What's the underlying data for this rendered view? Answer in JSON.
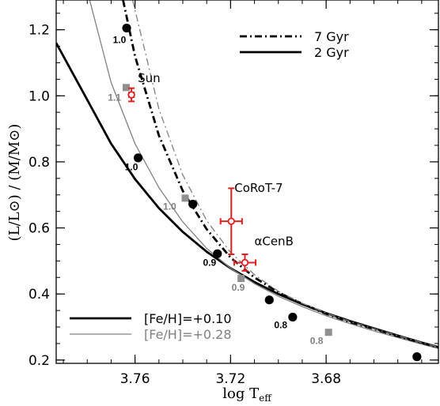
{
  "chart_data": {
    "type": "line",
    "title": "",
    "xlabel": "log T",
    "xlabel_sub": "eff",
    "ylabel": "(L/L⊙) / (M/M⊙)",
    "xlim": [
      3.793,
      3.633
    ],
    "ylim": [
      0.19,
      1.29
    ],
    "x_reversed": true,
    "xticks": [
      3.76,
      3.72,
      3.68
    ],
    "yticks": [
      0.2,
      0.4,
      0.6,
      0.8,
      1.0,
      1.2
    ],
    "ytick_labels": [
      "0.2",
      "0.4",
      "0.6",
      "0.8",
      "1.0",
      "1.2"
    ],
    "series": [
      {
        "name": "2 Gyr",
        "metallicity": "[Fe/H]=+0.10",
        "color": "#000000",
        "style": "solid",
        "width": "thick",
        "x": [
          3.793,
          3.78,
          3.77,
          3.76,
          3.75,
          3.74,
          3.73,
          3.72,
          3.71,
          3.7,
          3.69,
          3.68,
          3.67,
          3.66,
          3.65,
          3.64,
          3.633
        ],
        "y": [
          1.16,
          0.988,
          0.855,
          0.748,
          0.66,
          0.588,
          0.528,
          0.478,
          0.436,
          0.4,
          0.369,
          0.342,
          0.318,
          0.296,
          0.274,
          0.253,
          0.239
        ]
      },
      {
        "name": "2 Gyr",
        "metallicity": "[Fe/H]=+0.28",
        "color": "#808080",
        "style": "solid",
        "width": "thin",
        "x": [
          3.779,
          3.77,
          3.76,
          3.75,
          3.74,
          3.73,
          3.72,
          3.71,
          3.7,
          3.69,
          3.68,
          3.67,
          3.66,
          3.65,
          3.64,
          3.633
        ],
        "y": [
          1.29,
          1.04,
          0.855,
          0.722,
          0.618,
          0.538,
          0.478,
          0.431,
          0.393,
          0.362,
          0.334,
          0.31,
          0.288,
          0.268,
          0.248,
          0.235
        ]
      },
      {
        "name": "7 Gyr",
        "metallicity": "[Fe/H]=+0.10",
        "color": "#000000",
        "style": "dashdot",
        "width": "thick",
        "x": [
          3.765,
          3.76,
          3.75,
          3.74,
          3.73,
          3.72,
          3.71,
          3.7,
          3.69,
          3.68,
          3.67,
          3.66,
          3.65,
          3.64,
          3.633
        ],
        "y": [
          1.29,
          1.12,
          0.88,
          0.712,
          0.596,
          0.51,
          0.45,
          0.405,
          0.37,
          0.34,
          0.315,
          0.294,
          0.272,
          0.252,
          0.238
        ]
      },
      {
        "name": "7 Gyr",
        "metallicity": "[Fe/H]=+0.28",
        "color": "#808080",
        "style": "dashdot",
        "width": "thin",
        "x": [
          3.761,
          3.75,
          3.74,
          3.73,
          3.72,
          3.71,
          3.7,
          3.69,
          3.68,
          3.67,
          3.66,
          3.65,
          3.64,
          3.633
        ],
        "y": [
          1.29,
          0.96,
          0.76,
          0.622,
          0.526,
          0.458,
          0.408,
          0.372,
          0.342,
          0.317,
          0.295,
          0.274,
          0.253,
          0.239
        ]
      }
    ],
    "mass_markers": {
      "black": [
        {
          "x": 3.7635,
          "y": 1.205
        },
        {
          "x": 3.7587,
          "y": 0.812
        },
        {
          "x": 3.7358,
          "y": 0.672
        },
        {
          "x": 3.7255,
          "y": 0.522
        },
        {
          "x": 3.7038,
          "y": 0.382
        },
        {
          "x": 3.694,
          "y": 0.33
        },
        {
          "x": 3.642,
          "y": 0.21
        }
      ],
      "gray": [
        {
          "x": 3.7637,
          "y": 1.025
        },
        {
          "x": 3.739,
          "y": 0.69
        },
        {
          "x": 3.7156,
          "y": 0.447
        },
        {
          "x": 3.679,
          "y": 0.284
        }
      ]
    },
    "mass_labels": [
      {
        "text": "1.0",
        "x": 3.7665,
        "y": 1.16,
        "color": "#000000"
      },
      {
        "text": "1.1",
        "x": 3.7686,
        "y": 0.985,
        "color": "#808080"
      },
      {
        "text": "1.0",
        "x": 3.7615,
        "y": 0.775,
        "color": "#000000"
      },
      {
        "text": "1.0",
        "x": 3.7455,
        "y": 0.655,
        "color": "#808080"
      },
      {
        "text": "0.9",
        "x": 3.7288,
        "y": 0.485,
        "color": "#000000"
      },
      {
        "text": "0.9",
        "x": 3.7168,
        "y": 0.41,
        "color": "#808080"
      },
      {
        "text": "0.8",
        "x": 3.699,
        "y": 0.297,
        "color": "#000000"
      },
      {
        "text": "0.8",
        "x": 3.684,
        "y": 0.248,
        "color": "#808080"
      }
    ],
    "stars": [
      {
        "name": "Sun",
        "x": 3.7615,
        "y": 1.003,
        "xerr": 0.001,
        "yerr": 0.02,
        "color": "#e32020"
      },
      {
        "name": "CoRoT-7",
        "x": 3.7197,
        "y": 0.62,
        "xerr": 0.0045,
        "yerr": 0.1,
        "color": "#e32020"
      },
      {
        "name": "αCenB",
        "x": 3.714,
        "y": 0.495,
        "xerr": 0.0045,
        "yerr": 0.025,
        "color": "#e32020"
      }
    ],
    "legends": [
      {
        "position": "top-right",
        "entries": [
          {
            "label": "7 Gyr",
            "style": "dashdot",
            "color": "#000000"
          },
          {
            "label": "2 Gyr",
            "style": "solid",
            "color": "#000000"
          }
        ]
      },
      {
        "position": "bottom-left",
        "entries": [
          {
            "label": "[Fe/H]=+0.10",
            "style": "solid-thick",
            "color": "#000000"
          },
          {
            "label": "[Fe/H]=+0.28",
            "style": "solid-thin",
            "color": "#808080"
          }
        ]
      }
    ]
  }
}
